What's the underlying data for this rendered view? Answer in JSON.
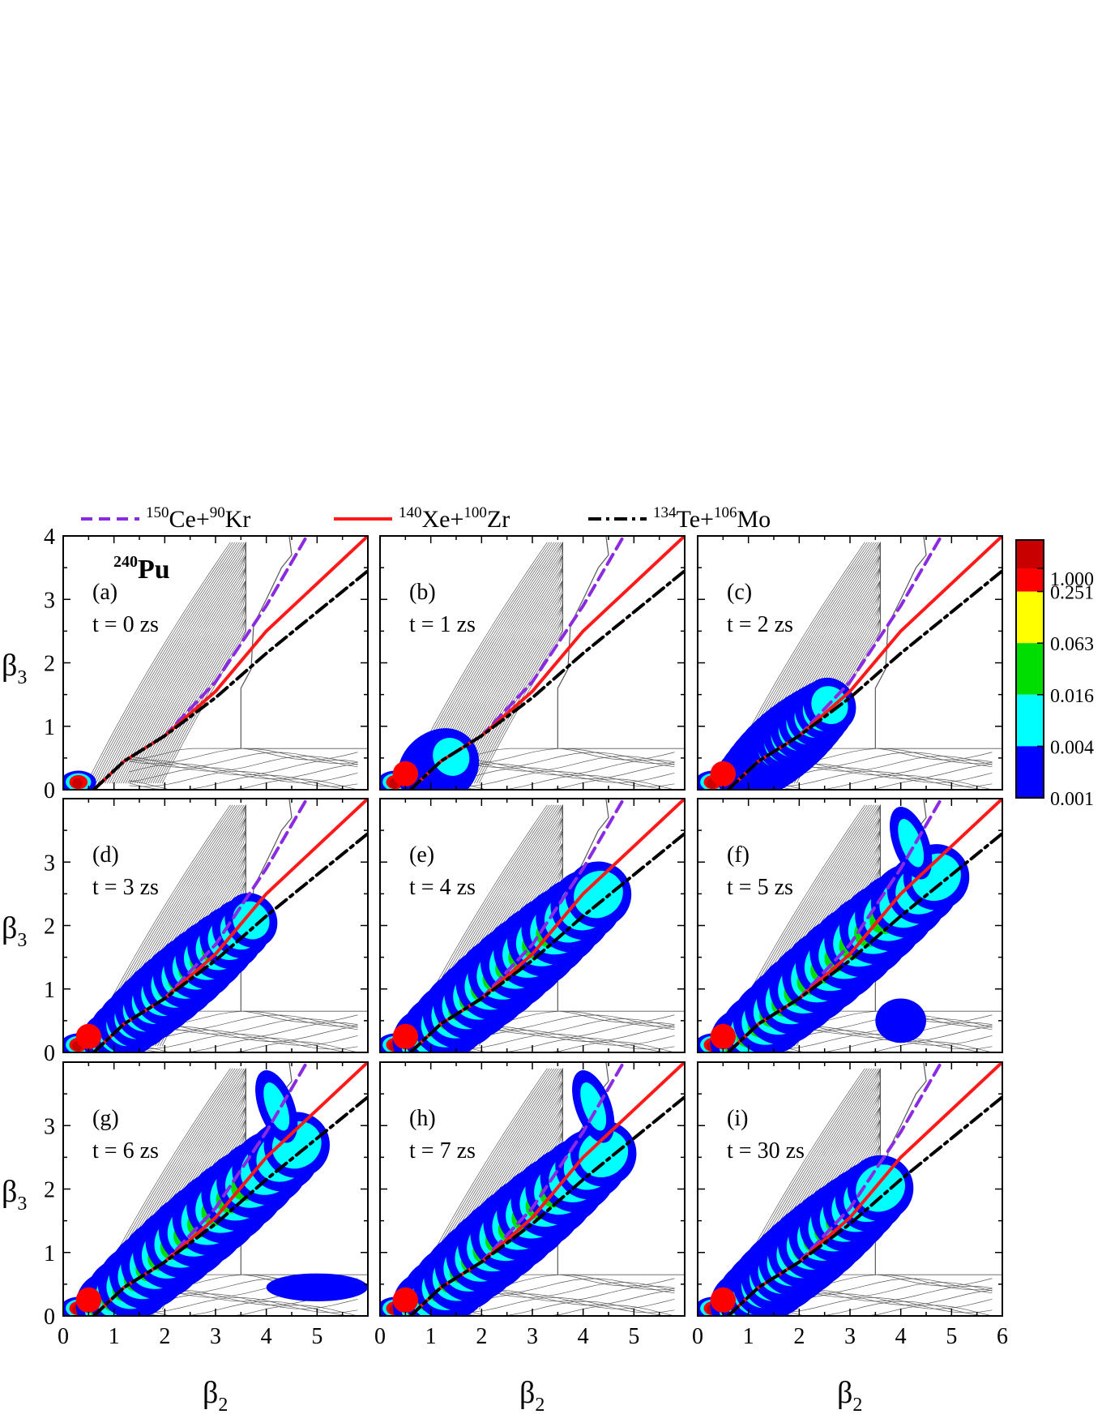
{
  "figure": {
    "nucleus_label": {
      "mass": "240",
      "symbol": "Pu"
    },
    "x_axis_label": {
      "symbol": "β",
      "sub": "2"
    },
    "y_axis_label": {
      "symbol": "β",
      "sub": "3"
    }
  },
  "legend": [
    {
      "parts": [
        [
          "sup",
          "150"
        ],
        [
          "n",
          "Ce+"
        ],
        [
          "sup",
          "90"
        ],
        [
          "n",
          "Kr"
        ]
      ],
      "color": "#8a2be2",
      "style": "dash"
    },
    {
      "parts": [
        [
          "sup",
          "140"
        ],
        [
          "n",
          "Xe+"
        ],
        [
          "sup",
          "100"
        ],
        [
          "n",
          "Zr"
        ]
      ],
      "color": "#ff1a1a",
      "style": "solid"
    },
    {
      "parts": [
        [
          "sup",
          "134"
        ],
        [
          "n",
          "Te+"
        ],
        [
          "sup",
          "106"
        ],
        [
          "n",
          "Mo"
        ]
      ],
      "color": "#000000",
      "style": "dashdot"
    }
  ],
  "colorbar": {
    "levels": [
      "1.000",
      "0.251",
      "0.063",
      "0.016",
      "0.004",
      "0.001"
    ],
    "colors": [
      "#ff0000",
      "#ffff00",
      "#00dd00",
      "#00ffff",
      "#0000ff"
    ],
    "top_color": "#c80000"
  },
  "chart_data": {
    "type": "heatmap",
    "xlim": [
      0,
      6
    ],
    "ylim": [
      0,
      4
    ],
    "xticks": [
      "0",
      "1",
      "2",
      "3",
      "4",
      "5",
      "6"
    ],
    "yticks": [
      "0",
      "1",
      "2",
      "3",
      "4"
    ],
    "panels": [
      {
        "label": "(a)",
        "time": "t = 0 zs"
      },
      {
        "label": "(b)",
        "time": "t = 1 zs"
      },
      {
        "label": "(c)",
        "time": "t = 2 zs"
      },
      {
        "label": "(d)",
        "time": "t = 3 zs"
      },
      {
        "label": "(e)",
        "time": "t = 4 zs"
      },
      {
        "label": "(f)",
        "time": "t = 5 zs"
      },
      {
        "label": "(g)",
        "time": "t = 6 zs"
      },
      {
        "label": "(h)",
        "time": "t = 7 zs"
      },
      {
        "label": "(i)",
        "time": "t = 30 zs"
      }
    ],
    "series": [
      {
        "name": "150Ce+90Kr",
        "points": [
          [
            0.6,
            0
          ],
          [
            1.2,
            0.45
          ],
          [
            2,
            0.85
          ],
          [
            3,
            1.7
          ],
          [
            4,
            2.9
          ],
          [
            4.8,
            4
          ]
        ]
      },
      {
        "name": "140Xe+100Zr",
        "points": [
          [
            0.6,
            0
          ],
          [
            1.2,
            0.45
          ],
          [
            2,
            0.85
          ],
          [
            3,
            1.55
          ],
          [
            4,
            2.5
          ],
          [
            6,
            4
          ]
        ]
      },
      {
        "name": "134Te+106Mo",
        "points": [
          [
            0.6,
            0
          ],
          [
            1.2,
            0.45
          ],
          [
            2,
            0.85
          ],
          [
            3,
            1.45
          ],
          [
            4,
            2.15
          ],
          [
            6,
            3.45
          ]
        ]
      }
    ]
  }
}
